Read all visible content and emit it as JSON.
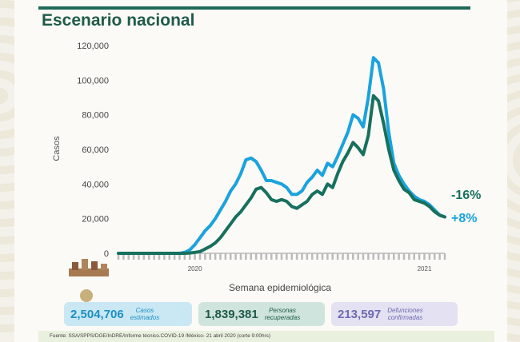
{
  "slide_title": "Escenario nacional",
  "chart_data": {
    "type": "line",
    "ylabel": "Casos",
    "xlabel": "Semana epidemiológica",
    "ylim": [
      0,
      120000
    ],
    "yticks": [
      0,
      20000,
      40000,
      60000,
      80000,
      100000,
      120000
    ],
    "ytick_labels": [
      "0",
      "20,000",
      "40,000",
      "60,000",
      "80,000",
      "100,000",
      "120,000"
    ],
    "year_labels": [
      {
        "label": "2020",
        "week": 16
      },
      {
        "label": "2021",
        "week": 61
      }
    ],
    "x_weeks": [
      1,
      2,
      3,
      4,
      5,
      6,
      7,
      8,
      9,
      10,
      11,
      12,
      13,
      14,
      15,
      16,
      17,
      18,
      19,
      20,
      21,
      22,
      23,
      24,
      25,
      26,
      27,
      28,
      29,
      30,
      31,
      32,
      33,
      34,
      35,
      36,
      37,
      38,
      39,
      40,
      41,
      42,
      43,
      44,
      45,
      46,
      47,
      48,
      49,
      50,
      51,
      52,
      53,
      54,
      55,
      56,
      57,
      58,
      59,
      60,
      61,
      62,
      63,
      64,
      65
    ],
    "series": [
      {
        "color": "#1aa3dd",
        "values": [
          0,
          0,
          0,
          0,
          0,
          0,
          0,
          0,
          0,
          0,
          0,
          0,
          0,
          500,
          2000,
          5000,
          9000,
          13000,
          16000,
          20000,
          25000,
          30000,
          36000,
          40000,
          46000,
          54000,
          55000,
          53000,
          48000,
          42000,
          42000,
          41000,
          40000,
          38000,
          34000,
          34000,
          36000,
          41000,
          44000,
          48000,
          45000,
          52000,
          50000,
          56000,
          63000,
          70000,
          80000,
          78000,
          73000,
          90000,
          113000,
          110000,
          95000,
          70000,
          52000,
          45000,
          40000,
          36000,
          33000,
          31000,
          30000,
          28000,
          25000,
          22000,
          21000
        ]
      },
      {
        "color": "#17705d",
        "values": [
          0,
          0,
          0,
          0,
          0,
          0,
          0,
          0,
          0,
          0,
          0,
          0,
          0,
          0,
          200,
          500,
          1000,
          2500,
          4000,
          6000,
          9000,
          13000,
          17000,
          21000,
          24000,
          28000,
          32000,
          37000,
          38000,
          35000,
          31000,
          30000,
          31000,
          30000,
          27000,
          26000,
          28000,
          30000,
          34000,
          36000,
          34000,
          40000,
          38000,
          46000,
          53000,
          58000,
          64000,
          61000,
          57000,
          68000,
          91000,
          88000,
          75000,
          60000,
          48000,
          42000,
          37000,
          35000,
          31000,
          30000,
          29000,
          27000,
          24000,
          22000,
          21000
        ]
      }
    ],
    "end_labels": [
      {
        "text": "-16%",
        "color": "#17705d"
      },
      {
        "text": "+8%",
        "color": "#1aa3dd"
      }
    ],
    "grid": false
  },
  "stats": [
    {
      "value": "2,504,706",
      "label_line1": "Casos",
      "label_line2": "estimados"
    },
    {
      "value": "1,839,381",
      "label_line1": "Personas",
      "label_line2": "recuperadas"
    },
    {
      "value": "213,597",
      "label_line1": "Defunciones",
      "label_line2": "confirmadas"
    }
  ],
  "footer": "Fuente: SSA/SPPS/DGE/InDRE/Informe técnico.COVID-19 /México- 21 abril 2020 (corte 9:00hrs)",
  "colors": {
    "title": "#1f5b4a",
    "series1": "#1aa3dd",
    "series2": "#17705d"
  }
}
